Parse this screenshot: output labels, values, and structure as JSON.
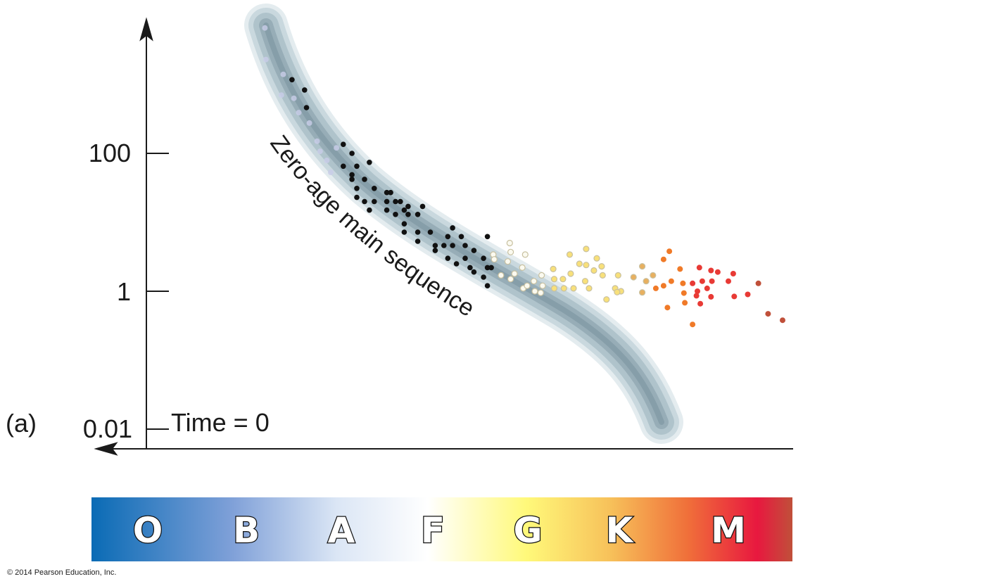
{
  "chart_data": {
    "type": "scatter",
    "panel_label": "(a)",
    "annotation": "Time = 0",
    "curve_label": "Zero-age main sequence",
    "y_axis": {
      "scale": "log",
      "ticks": [
        100,
        1,
        0.01
      ],
      "tick_labels": [
        "100",
        "1",
        "0.01"
      ],
      "range": [
        0.01,
        10000
      ]
    },
    "x_axis": {
      "ticks": [],
      "direction": "spectral class O (left) to M (right)",
      "range": [
        -0.6,
        6.7
      ]
    },
    "spectral_classes": [
      "O",
      "B",
      "A",
      "F",
      "G",
      "K",
      "M"
    ],
    "spectral_bar_colors": [
      "#0a6bb5",
      "#7fa0d8",
      "#dbe6f5",
      "#ffffff",
      "#fff97a",
      "#f7c15a",
      "#f0703a",
      "#e8183f",
      "#c0503a"
    ],
    "band_color": "#9fb6c0",
    "copyright": "© 2014 Pearson Education, Inc.",
    "series": [
      {
        "color": "#c9cde8",
        "points": [
          [
            1.21,
            6600
          ],
          [
            1.22,
            2300
          ],
          [
            1.4,
            1400
          ],
          [
            1.38,
            700
          ],
          [
            1.51,
            630
          ],
          [
            1.56,
            390
          ],
          [
            1.67,
            275
          ],
          [
            1.75,
            150
          ],
          [
            1.78,
            107
          ],
          [
            1.85,
            79
          ],
          [
            1.89,
            53
          ],
          [
            1.95,
            120
          ]
        ]
      },
      {
        "color": "#111111",
        "points": [
          [
            1.49,
            1170
          ],
          [
            1.62,
            830
          ],
          [
            1.64,
            460
          ],
          [
            2.02,
            135
          ],
          [
            2.11,
            100
          ],
          [
            2.29,
            74
          ],
          [
            2.02,
            65
          ],
          [
            2.16,
            65
          ],
          [
            2.11,
            49
          ],
          [
            2.11,
            42
          ],
          [
            2.24,
            42
          ],
          [
            2.34,
            31
          ],
          [
            2.16,
            31
          ],
          [
            2.47,
            27
          ],
          [
            2.51,
            27
          ],
          [
            2.16,
            23
          ],
          [
            2.24,
            20
          ],
          [
            2.34,
            20
          ],
          [
            2.47,
            20
          ],
          [
            2.56,
            20
          ],
          [
            2.61,
            20
          ],
          [
            2.69,
            17
          ],
          [
            2.84,
            17
          ],
          [
            2.29,
            15
          ],
          [
            2.47,
            15
          ],
          [
            2.65,
            15
          ],
          [
            2.56,
            13
          ],
          [
            2.69,
            13
          ],
          [
            2.79,
            13
          ],
          [
            2.65,
            9.5
          ],
          [
            3.15,
            8.3
          ],
          [
            2.65,
            7.2
          ],
          [
            2.79,
            7.2
          ],
          [
            2.92,
            7.2
          ],
          [
            3.1,
            6.2
          ],
          [
            3.24,
            6.2
          ],
          [
            3.51,
            6.2
          ],
          [
            2.79,
            5.3
          ],
          [
            2.97,
            4.6
          ],
          [
            3.06,
            4.6
          ],
          [
            3.15,
            4.6
          ],
          [
            3.28,
            4.6
          ],
          [
            2.97,
            3.9
          ],
          [
            3.37,
            3.9
          ],
          [
            3.1,
            3.0
          ],
          [
            3.28,
            3.0
          ],
          [
            3.47,
            3.0
          ],
          [
            3.19,
            2.5
          ],
          [
            3.33,
            2.2
          ],
          [
            3.51,
            2.2
          ],
          [
            3.55,
            2.2
          ],
          [
            3.37,
            1.9
          ],
          [
            3.47,
            1.6
          ],
          [
            3.51,
            1.2
          ]
        ]
      },
      {
        "color": "#fbfaf0",
        "points": [
          [
            3.74,
            5.0
          ],
          [
            3.75,
            3.7
          ],
          [
            3.57,
            3.4
          ],
          [
            3.58,
            2.9
          ],
          [
            3.72,
            2.7
          ],
          [
            3.9,
            3.4
          ],
          [
            3.87,
            2.2
          ],
          [
            3.65,
            1.7
          ],
          [
            3.79,
            1.8
          ],
          [
            3.75,
            1.5
          ],
          [
            3.88,
            1.1
          ],
          [
            3.92,
            1.2
          ],
          [
            3.99,
            1.4
          ],
          [
            4.07,
            1.7
          ],
          [
            4.08,
            1.2
          ],
          [
            4.0,
            1.0
          ],
          [
            4.06,
            0.95
          ]
        ]
      },
      {
        "color": "#f8e07a",
        "points": [
          [
            4.19,
            2.1
          ],
          [
            4.2,
            1.5
          ],
          [
            4.29,
            1.5
          ],
          [
            4.37,
            1.8
          ],
          [
            4.36,
            3.4
          ],
          [
            4.53,
            4.1
          ],
          [
            4.64,
            3.0
          ],
          [
            4.46,
            2.5
          ],
          [
            4.53,
            2.4
          ],
          [
            4.61,
            2.0
          ],
          [
            4.69,
            2.3
          ],
          [
            4.7,
            1.7
          ],
          [
            4.52,
            1.4
          ],
          [
            4.2,
            1.1
          ],
          [
            4.3,
            1.1
          ],
          [
            4.4,
            1.1
          ],
          [
            4.56,
            1.1
          ],
          [
            4.74,
            0.76
          ],
          [
            4.86,
            1.7
          ],
          [
            4.83,
            1.1
          ],
          [
            4.89,
            1.0
          ],
          [
            4.85,
            0.97
          ]
        ]
      },
      {
        "color": "#e8b060",
        "points": [
          [
            5.11,
            2.3
          ],
          [
            5.02,
            1.6
          ],
          [
            5.15,
            1.4
          ],
          [
            5.22,
            1.7
          ],
          [
            5.11,
            0.96
          ]
        ]
      },
      {
        "color": "#f07a28",
        "points": [
          [
            5.39,
            3.8
          ],
          [
            5.33,
            2.9
          ],
          [
            5.5,
            2.1
          ],
          [
            5.41,
            1.4
          ],
          [
            5.33,
            1.2
          ],
          [
            5.25,
            1.1
          ],
          [
            5.37,
            0.58
          ],
          [
            5.53,
            1.3
          ],
          [
            5.54,
            0.94
          ],
          [
            5.55,
            0.68
          ],
          [
            5.63,
            0.33
          ]
        ]
      },
      {
        "color": "#e83a35",
        "points": [
          [
            5.7,
            2.2
          ],
          [
            5.82,
            2.0
          ],
          [
            5.89,
            1.9
          ],
          [
            5.63,
            1.3
          ],
          [
            5.73,
            1.4
          ],
          [
            5.83,
            1.4
          ],
          [
            5.68,
            1.0
          ],
          [
            5.78,
            1.1
          ],
          [
            5.67,
            0.86
          ],
          [
            5.82,
            0.83
          ],
          [
            5.71,
            0.66
          ],
          [
            6.05,
            1.8
          ],
          [
            6.0,
            1.4
          ],
          [
            6.06,
            0.84
          ],
          [
            6.2,
            0.9
          ]
        ]
      },
      {
        "color": "#c0503a",
        "points": [
          [
            6.31,
            1.3
          ],
          [
            6.41,
            0.47
          ],
          [
            6.56,
            0.38
          ]
        ]
      }
    ]
  }
}
